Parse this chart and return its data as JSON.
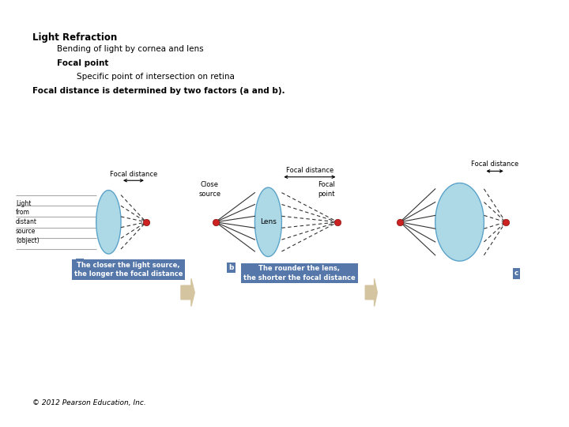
{
  "bg_color": "#ffffff",
  "title_text": "Light Refraction",
  "bullet1": "Bending of light by cornea and lens",
  "bullet2_bold": "Focal point",
  "bullet3": "Specific point of intersection on retina",
  "bullet4_bold": "Focal distance is determined by two factors (a and b).",
  "copyright": "© 2012 Pearson Education, Inc.",
  "caption_a": "The closer the light source,\nthe longer the focal distance",
  "caption_b": "The rounder the lens,\nthe shorter the focal distance",
  "label_focal_distance": "Focal distance",
  "label_light_source": "Light\nfrom\ndistant\nsource\n(object)",
  "label_close_source": "Close\nsource",
  "label_focal_point": "Focal\npoint",
  "label_lens": "Lens",
  "lens_color": "#add8e6",
  "lens_edge_color": "#5ba3c9",
  "focal_dot_color": "#cc2222",
  "big_arrow_color": "#d4c4a0",
  "label_bg_color": "#5577aa",
  "label_text_color": "#ffffff",
  "ray_color_gray": "#aaaaaa",
  "ray_color_black": "#333333"
}
